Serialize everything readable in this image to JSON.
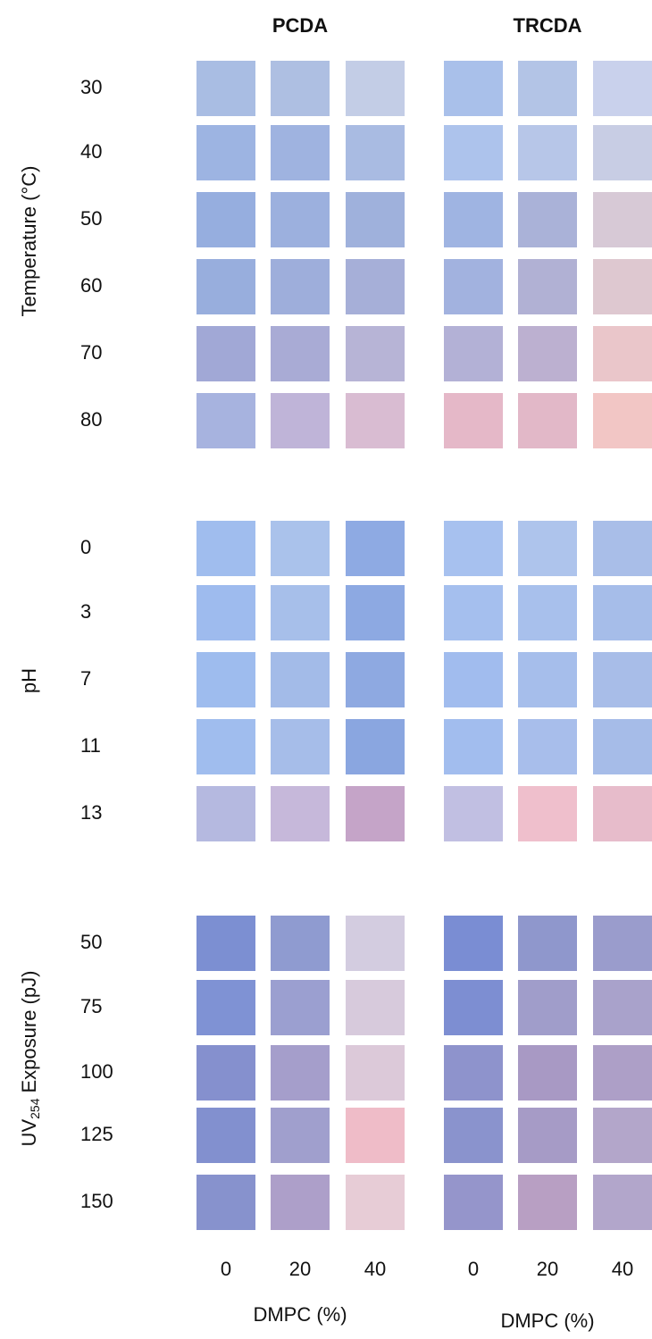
{
  "panels": [
    {
      "title": "PCDA",
      "ticks": [
        "0",
        "20",
        "40"
      ],
      "axis_label": "DMPC (%)"
    },
    {
      "title": "TRCDA",
      "ticks": [
        "0",
        "20",
        "40"
      ],
      "axis_label": "DMPC (%)"
    }
  ],
  "groups": [
    {
      "label": "Temperature (°C)",
      "rows": [
        {
          "label": "30",
          "colors": [
            "#a9bde3",
            "#aebfe2",
            "#c3cde6",
            "#a9c0ea",
            "#b3c4e6",
            "#c9d1ec"
          ]
        },
        {
          "label": "40",
          "colors": [
            "#9db4e2",
            "#9fb3e0",
            "#a9bbe2",
            "#adc3ec",
            "#b7c6e8",
            "#c8cde4"
          ]
        },
        {
          "label": "50",
          "colors": [
            "#96aedf",
            "#9cb0de",
            "#9fb1dc",
            "#9fb4e2",
            "#aab2d8",
            "#d7c9d6"
          ]
        },
        {
          "label": "60",
          "colors": [
            "#98aedd",
            "#9eaedb",
            "#a6afd8",
            "#a2b2df",
            "#b1b1d4",
            "#dec8d0"
          ]
        },
        {
          "label": "70",
          "colors": [
            "#a1a8d6",
            "#a9abd5",
            "#b7b4d6",
            "#b3b1d6",
            "#bcb0d0",
            "#eac6ca"
          ]
        },
        {
          "label": "80",
          "colors": [
            "#a7b3df",
            "#bfb4d8",
            "#d9bcd2",
            "#e5b8c8",
            "#e2b8c8",
            "#f2c6c5"
          ]
        }
      ]
    },
    {
      "label": "pH",
      "rows": [
        {
          "label": "0",
          "colors": [
            "#a0bdee",
            "#aac2eb",
            "#8eaae3",
            "#a7c1ef",
            "#aec4ec",
            "#a9bee8"
          ]
        },
        {
          "label": "3",
          "colors": [
            "#9ebbee",
            "#a7bfea",
            "#8da9e2",
            "#a5bfee",
            "#a8c0ec",
            "#a6bde9"
          ]
        },
        {
          "label": "7",
          "colors": [
            "#9ebcee",
            "#a3bbe8",
            "#8ea9e1",
            "#a1bcee",
            "#a6beeb",
            "#a8bde8"
          ]
        },
        {
          "label": "11",
          "colors": [
            "#a0bdee",
            "#a6bde9",
            "#8aa6e0",
            "#a2bdee",
            "#a8beeb",
            "#a6bce8"
          ]
        },
        {
          "label": "13",
          "colors": [
            "#b5b9e0",
            "#c6b8da",
            "#c5a4c8",
            "#c1bfe2",
            "#efbfcc",
            "#e7bccb"
          ]
        }
      ]
    },
    {
      "label": "UV",
      "label_sub": "254",
      "label_rest": "Exposure (pJ)",
      "rows": [
        {
          "label": "50",
          "colors": [
            "#7c8fd2",
            "#8f9bd0",
            "#d3cce0",
            "#7a8dd3",
            "#8f97cc",
            "#9a9ccc"
          ]
        },
        {
          "label": "75",
          "colors": [
            "#7f92d4",
            "#9b9fd0",
            "#d7cadc",
            "#7d8ed2",
            "#a09dca",
            "#a9a2cb"
          ]
        },
        {
          "label": "100",
          "colors": [
            "#8590ce",
            "#a59ecb",
            "#dcc9d9",
            "#8e93cc",
            "#a899c4",
            "#ad9fc7"
          ]
        },
        {
          "label": "125",
          "colors": [
            "#8290cf",
            "#a09fcd",
            "#efbcc8",
            "#8a93cd",
            "#a69bc6",
            "#b3a6ca"
          ]
        },
        {
          "label": "150",
          "colors": [
            "#8792cd",
            "#ad9fc9",
            "#e7ccd6",
            "#9595cb",
            "#b89fc3",
            "#b2a6cb"
          ]
        }
      ]
    }
  ]
}
